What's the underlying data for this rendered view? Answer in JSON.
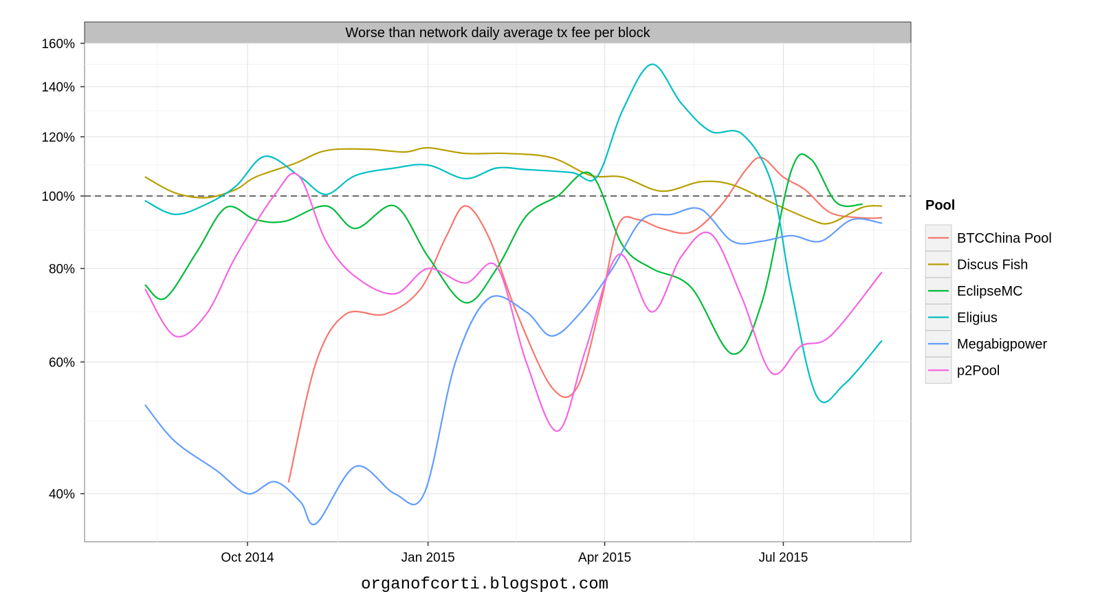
{
  "chart_data": {
    "type": "line",
    "facet_title": "Worse than network daily average tx fee per block",
    "caption": "organofcorti.blogspot.com",
    "x_ticks": [
      {
        "date": "2014-10-01",
        "label": "Oct 2014"
      },
      {
        "date": "2015-01-01",
        "label": "Jan 2015"
      },
      {
        "date": "2015-04-01",
        "label": "Apr 2015"
      },
      {
        "date": "2015-07-01",
        "label": "Jul 2015"
      }
    ],
    "x_range": [
      "2014-07-10",
      "2015-09-04"
    ],
    "y_scale": "log",
    "y_ticks": [
      {
        "value": 40,
        "label": "40%"
      },
      {
        "value": 60,
        "label": "60%"
      },
      {
        "value": 80,
        "label": "80%"
      },
      {
        "value": 100,
        "label": "100%"
      },
      {
        "value": 120,
        "label": "120%"
      },
      {
        "value": 140,
        "label": "140%"
      },
      {
        "value": 160,
        "label": "160%"
      }
    ],
    "y_range": [
      34.5,
      160
    ],
    "reference_line": {
      "value": 100,
      "style": "dashed"
    },
    "grid": true,
    "legend": {
      "title": "Pool",
      "position": "right"
    },
    "series": [
      {
        "name": "BTCChina Pool",
        "color": "#F8766D",
        "points": [
          [
            "2014-10-22",
            41.5
          ],
          [
            "2014-11-05",
            60
          ],
          [
            "2014-11-20",
            69.5
          ],
          [
            "2014-12-10",
            69.5
          ],
          [
            "2014-12-28",
            75
          ],
          [
            "2015-01-10",
            88
          ],
          [
            "2015-01-20",
            97
          ],
          [
            "2015-02-01",
            88
          ],
          [
            "2015-02-15",
            70
          ],
          [
            "2015-03-05",
            55.5
          ],
          [
            "2015-03-18",
            55.5
          ],
          [
            "2015-03-30",
            72
          ],
          [
            "2015-04-08",
            91.5
          ],
          [
            "2015-04-18",
            93
          ],
          [
            "2015-04-30",
            90.5
          ],
          [
            "2015-05-15",
            89.5
          ],
          [
            "2015-05-30",
            97
          ],
          [
            "2015-06-12",
            108.5
          ],
          [
            "2015-06-20",
            112.5
          ],
          [
            "2015-07-01",
            106
          ],
          [
            "2015-07-12",
            102
          ],
          [
            "2015-07-25",
            95
          ],
          [
            "2015-08-10",
            93.5
          ],
          [
            "2015-08-20",
            93.5
          ]
        ]
      },
      {
        "name": "Discus Fish",
        "color": "#B79F00",
        "points": [
          [
            "2014-08-10",
            106
          ],
          [
            "2014-08-25",
            101
          ],
          [
            "2014-09-10",
            99.5
          ],
          [
            "2014-09-25",
            102
          ],
          [
            "2014-10-05",
            106
          ],
          [
            "2014-10-25",
            110.5
          ],
          [
            "2014-11-10",
            115
          ],
          [
            "2014-12-01",
            115.5
          ],
          [
            "2014-12-20",
            114.5
          ],
          [
            "2015-01-01",
            116
          ],
          [
            "2015-01-20",
            114
          ],
          [
            "2015-02-10",
            114
          ],
          [
            "2015-03-05",
            112.5
          ],
          [
            "2015-03-25",
            106.5
          ],
          [
            "2015-04-10",
            106
          ],
          [
            "2015-04-30",
            101.5
          ],
          [
            "2015-05-20",
            104.5
          ],
          [
            "2015-06-05",
            103.5
          ],
          [
            "2015-06-25",
            98
          ],
          [
            "2015-07-15",
            93
          ],
          [
            "2015-07-25",
            92
          ],
          [
            "2015-08-10",
            96.5
          ],
          [
            "2015-08-20",
            97
          ]
        ]
      },
      {
        "name": "EclipseMC",
        "color": "#00BA38",
        "points": [
          [
            "2014-08-10",
            76
          ],
          [
            "2014-08-20",
            73
          ],
          [
            "2014-09-05",
            84
          ],
          [
            "2014-09-20",
            96.5
          ],
          [
            "2014-10-05",
            93
          ],
          [
            "2014-10-20",
            92.5
          ],
          [
            "2014-11-10",
            97
          ],
          [
            "2014-11-25",
            90.5
          ],
          [
            "2014-12-15",
            97
          ],
          [
            "2015-01-01",
            83
          ],
          [
            "2015-01-20",
            72
          ],
          [
            "2015-02-05",
            80
          ],
          [
            "2015-02-20",
            94
          ],
          [
            "2015-03-08",
            100
          ],
          [
            "2015-03-25",
            107
          ],
          [
            "2015-04-10",
            86
          ],
          [
            "2015-04-25",
            80
          ],
          [
            "2015-05-15",
            75.5
          ],
          [
            "2015-06-05",
            61.5
          ],
          [
            "2015-06-20",
            72
          ],
          [
            "2015-07-05",
            108
          ],
          [
            "2015-07-15",
            112
          ],
          [
            "2015-07-28",
            98
          ],
          [
            "2015-08-10",
            97.5
          ]
        ]
      },
      {
        "name": "Eligius",
        "color": "#00BFC4",
        "points": [
          [
            "2014-08-10",
            98.5
          ],
          [
            "2014-08-25",
            94.5
          ],
          [
            "2014-09-10",
            97.5
          ],
          [
            "2014-09-25",
            103
          ],
          [
            "2014-10-10",
            113
          ],
          [
            "2014-10-28",
            106
          ],
          [
            "2014-11-10",
            100.5
          ],
          [
            "2014-11-25",
            106.5
          ],
          [
            "2014-12-15",
            109
          ],
          [
            "2015-01-01",
            110
          ],
          [
            "2015-01-20",
            105.5
          ],
          [
            "2015-02-05",
            109
          ],
          [
            "2015-02-20",
            108.5
          ],
          [
            "2015-03-15",
            107.5
          ],
          [
            "2015-03-28",
            106
          ],
          [
            "2015-04-10",
            130
          ],
          [
            "2015-04-25",
            150
          ],
          [
            "2015-05-10",
            133
          ],
          [
            "2015-05-25",
            122
          ],
          [
            "2015-06-10",
            121
          ],
          [
            "2015-06-25",
            104
          ],
          [
            "2015-07-05",
            75
          ],
          [
            "2015-07-18",
            54
          ],
          [
            "2015-08-01",
            56
          ],
          [
            "2015-08-20",
            64
          ]
        ]
      },
      {
        "name": "Megabigpower",
        "color": "#619CFF",
        "points": [
          [
            "2014-08-10",
            52.5
          ],
          [
            "2014-08-25",
            47
          ],
          [
            "2014-09-15",
            43
          ],
          [
            "2014-10-01",
            40
          ],
          [
            "2014-10-15",
            41.5
          ],
          [
            "2014-10-28",
            39
          ],
          [
            "2014-11-05",
            36.5
          ],
          [
            "2014-11-25",
            43.5
          ],
          [
            "2014-12-15",
            40
          ],
          [
            "2014-12-30",
            40
          ],
          [
            "2015-01-15",
            60
          ],
          [
            "2015-02-01",
            73
          ],
          [
            "2015-02-20",
            70
          ],
          [
            "2015-03-05",
            65
          ],
          [
            "2015-03-20",
            70
          ],
          [
            "2015-04-05",
            80
          ],
          [
            "2015-04-20",
            93
          ],
          [
            "2015-05-05",
            94.5
          ],
          [
            "2015-05-20",
            96
          ],
          [
            "2015-06-05",
            87
          ],
          [
            "2015-06-20",
            87
          ],
          [
            "2015-07-05",
            88.5
          ],
          [
            "2015-07-20",
            87
          ],
          [
            "2015-08-05",
            93
          ],
          [
            "2015-08-20",
            92
          ]
        ]
      },
      {
        "name": "p2Pool",
        "color": "#F564E3",
        "points": [
          [
            "2014-08-10",
            75
          ],
          [
            "2014-08-25",
            65
          ],
          [
            "2014-09-10",
            69.5
          ],
          [
            "2014-09-25",
            83
          ],
          [
            "2014-10-15",
            100.5
          ],
          [
            "2014-10-27",
            106.5
          ],
          [
            "2014-11-10",
            87
          ],
          [
            "2014-11-25",
            78
          ],
          [
            "2014-12-15",
            74
          ],
          [
            "2015-01-01",
            80
          ],
          [
            "2015-01-20",
            76.5
          ],
          [
            "2015-02-05",
            80.5
          ],
          [
            "2015-02-20",
            60
          ],
          [
            "2015-03-08",
            48.5
          ],
          [
            "2015-03-22",
            62
          ],
          [
            "2015-04-08",
            83.5
          ],
          [
            "2015-04-25",
            70
          ],
          [
            "2015-05-10",
            83
          ],
          [
            "2015-05-25",
            89
          ],
          [
            "2015-06-10",
            73
          ],
          [
            "2015-06-25",
            58
          ],
          [
            "2015-07-10",
            63
          ],
          [
            "2015-07-25",
            65
          ],
          [
            "2015-08-20",
            79
          ]
        ]
      }
    ]
  }
}
